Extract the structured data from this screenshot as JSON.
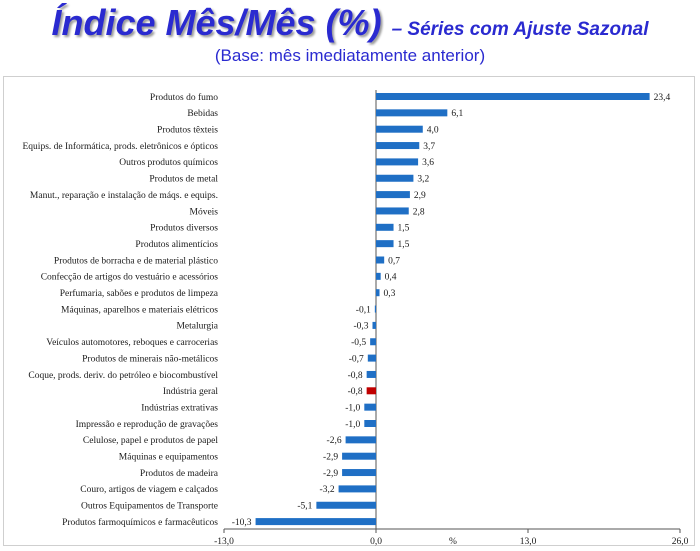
{
  "title": "Índice Mês/Mês (%)",
  "title_suffix": "– Séries com Ajuste Sazonal",
  "subtitle": "(Base: mês imediatamente anterior)",
  "chart_data": {
    "type": "bar",
    "orientation": "horizontal",
    "xlabel": "%",
    "xlim": [
      -13.0,
      26.0
    ],
    "x_ticks": [
      -13.0,
      0.0,
      13.0,
      26.0
    ],
    "x_tick_labels": [
      "-13,0",
      "0,0",
      "13,0",
      "26,0"
    ],
    "grid": false,
    "colors": {
      "bar": "#1f6fc5",
      "highlight": "#c00000"
    },
    "highlight_category": "Indústria geral",
    "categories": [
      "Produtos do fumo",
      "Bebidas",
      "Produtos têxteis",
      "Equips. de Informática, prods. eletrônicos e ópticos",
      "Outros produtos químicos",
      "Produtos de metal",
      "Manut., reparação e instalação de máqs. e equips.",
      "Móveis",
      "Produtos diversos",
      "Produtos alimentícios",
      "Produtos de borracha e de material plástico",
      "Confecção de artigos do vestuário e acessórios",
      "Perfumaria, sabões e produtos de limpeza",
      "Máquinas, aparelhos e materiais elétricos",
      "Metalurgia",
      "Veículos automotores, reboques e carrocerias",
      "Produtos de minerais não-metálicos",
      "Coque, prods. deriv. do petróleo e biocombustível",
      "Indústria geral",
      "Indústrias extrativas",
      "Impressão e reprodução de gravações",
      "Celulose, papel e produtos de papel",
      "Máquinas e equipamentos",
      "Produtos de madeira",
      "Couro, artigos de viagem e calçados",
      "Outros Equipamentos de Transporte",
      "Produtos farmoquímicos e farmacêuticos"
    ],
    "values": [
      23.4,
      6.1,
      4.0,
      3.7,
      3.6,
      3.2,
      2.9,
      2.8,
      1.5,
      1.5,
      0.7,
      0.4,
      0.3,
      -0.1,
      -0.3,
      -0.5,
      -0.7,
      -0.8,
      -0.8,
      -1.0,
      -1.0,
      -2.6,
      -2.9,
      -2.9,
      -3.2,
      -5.1,
      -10.3
    ],
    "value_labels": [
      "23,4",
      "6,1",
      "4,0",
      "3,7",
      "3,6",
      "3,2",
      "2,9",
      "2,8",
      "1,5",
      "1,5",
      "0,7",
      "0,4",
      "0,3",
      "-0,1",
      "-0,3",
      "-0,5",
      "-0,7",
      "-0,8",
      "-0,8",
      "-1,0",
      "-1,0",
      "-2,6",
      "-2,9",
      "-2,9",
      "-3,2",
      "-5,1",
      "-10,3"
    ]
  }
}
